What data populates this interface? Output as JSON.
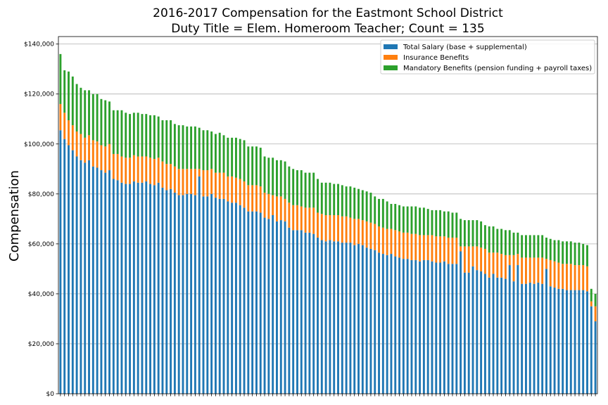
{
  "chart_data": {
    "type": "bar",
    "stacked": true,
    "title": [
      "2016-2017 Compensation for the Eastmont School District",
      "Duty Title = Elem. Homeroom Teacher; Count = 135"
    ],
    "xlabel": "",
    "ylabel": "Compensation",
    "ylim": [
      0,
      143000
    ],
    "yticks": [
      0,
      20000,
      40000,
      60000,
      80000,
      100000,
      120000,
      140000
    ],
    "ytick_labels": [
      "$0",
      "$20,000",
      "$40,000",
      "$60,000",
      "$80,000",
      "$100,000",
      "$120,000",
      "$140,000"
    ],
    "grid": "horizontal",
    "legend_position": "top-right",
    "colors": [
      "#1f77b4",
      "#ff7f0e",
      "#2ca02c"
    ],
    "series": [
      {
        "name": "Total Salary (base + supplemental)",
        "values": [
          105500,
          102000,
          99500,
          97500,
          95000,
          93500,
          92500,
          93500,
          91000,
          90500,
          89500,
          88500,
          89500,
          86000,
          85500,
          84500,
          84000,
          84000,
          85000,
          84500,
          84500,
          85000,
          84000,
          83500,
          84500,
          82500,
          81500,
          82000,
          80500,
          79500,
          79500,
          80000,
          80000,
          79500,
          87000,
          79000,
          79000,
          80000,
          78500,
          78000,
          78000,
          77000,
          76500,
          76500,
          75500,
          74500,
          73000,
          73000,
          73000,
          72500,
          70500,
          70000,
          71500,
          69000,
          69500,
          69000,
          66500,
          65500,
          65500,
          65500,
          64500,
          64500,
          64000,
          62500,
          61500,
          61000,
          61500,
          61000,
          61000,
          60500,
          60500,
          60500,
          59500,
          60000,
          59500,
          58500,
          58000,
          57500,
          56500,
          56000,
          55500,
          56000,
          55000,
          54500,
          54000,
          54000,
          53500,
          53500,
          53000,
          53500,
          53500,
          53000,
          52500,
          52500,
          53000,
          52000,
          52000,
          52000,
          57000,
          48500,
          48500,
          51000,
          49500,
          49000,
          48000,
          46500,
          48000,
          46500,
          46500,
          46000,
          51500,
          45000,
          51500,
          44000,
          44000,
          44500,
          44000,
          44500,
          44000,
          50000,
          43000,
          42500,
          42000,
          42000,
          41500,
          41500,
          41500,
          41500,
          41500,
          41000,
          35000,
          29000
        ],
        "extra_values_note": ""
      },
      {
        "name": "Insurance Benefits",
        "values": [
          10500,
          10500,
          10000,
          10000,
          10000,
          10500,
          10000,
          10000,
          10500,
          10500,
          10000,
          10500,
          10500,
          10000,
          10500,
          10500,
          10500,
          10500,
          10500,
          10500,
          10500,
          10000,
          10500,
          10500,
          10000,
          10500,
          10500,
          10000,
          10500,
          10500,
          10500,
          10000,
          10000,
          10500,
          3000,
          10500,
          10500,
          10000,
          10000,
          10500,
          10500,
          10000,
          10500,
          10000,
          10500,
          10500,
          10500,
          10500,
          10500,
          10500,
          10000,
          10000,
          8000,
          10000,
          9500,
          9000,
          10000,
          10000,
          10000,
          9500,
          10000,
          10000,
          10500,
          10000,
          10500,
          10500,
          10000,
          10500,
          10500,
          10500,
          10500,
          10000,
          10500,
          10000,
          10000,
          10500,
          10500,
          10500,
          10500,
          10500,
          10500,
          10000,
          10500,
          10500,
          10500,
          10500,
          10500,
          10500,
          10500,
          10000,
          10000,
          10500,
          10500,
          10500,
          10000,
          10500,
          10500,
          10500,
          2000,
          10500,
          10500,
          8000,
          9500,
          9500,
          10000,
          10000,
          8500,
          10000,
          9500,
          9500,
          4000,
          10500,
          4500,
          10500,
          10500,
          10000,
          10500,
          10000,
          10500,
          4000,
          10500,
          10500,
          10500,
          10000,
          10500,
          10500,
          10000,
          10000,
          10000,
          10000,
          2000,
          6000
        ]
      },
      {
        "name": "Mandatory Benefits (pension funding + payroll taxes)",
        "values": [
          20000,
          17000,
          19500,
          19500,
          19000,
          18500,
          19000,
          18000,
          18500,
          19000,
          18500,
          18500,
          17000,
          17500,
          17500,
          18500,
          18000,
          17500,
          17000,
          17500,
          17000,
          17000,
          17000,
          17500,
          16500,
          16500,
          17500,
          17500,
          17000,
          17500,
          17500,
          17000,
          17000,
          17000,
          16500,
          16000,
          16000,
          15000,
          15500,
          16000,
          15000,
          15500,
          15500,
          16000,
          16000,
          16500,
          15500,
          15500,
          15500,
          15500,
          14500,
          14500,
          15000,
          14500,
          14500,
          15000,
          14500,
          14500,
          14000,
          14500,
          14000,
          14000,
          14000,
          13500,
          12500,
          13000,
          13000,
          12500,
          12500,
          12500,
          12000,
          12500,
          12500,
          12000,
          12000,
          12000,
          12000,
          11000,
          11000,
          11500,
          11000,
          10000,
          10500,
          10500,
          10500,
          10500,
          11000,
          11000,
          11000,
          11000,
          10500,
          10000,
          10500,
          10500,
          10000,
          10500,
          10000,
          10000,
          11000,
          10500,
          10500,
          10500,
          10500,
          10500,
          9500,
          10500,
          10500,
          9500,
          10000,
          10000,
          10000,
          9000,
          8500,
          9000,
          9000,
          9000,
          9000,
          9000,
          9000,
          8500,
          8500,
          8500,
          9000,
          9000,
          9000,
          9000,
          9000,
          9000,
          8500,
          8500,
          5000,
          5000
        ]
      }
    ]
  }
}
